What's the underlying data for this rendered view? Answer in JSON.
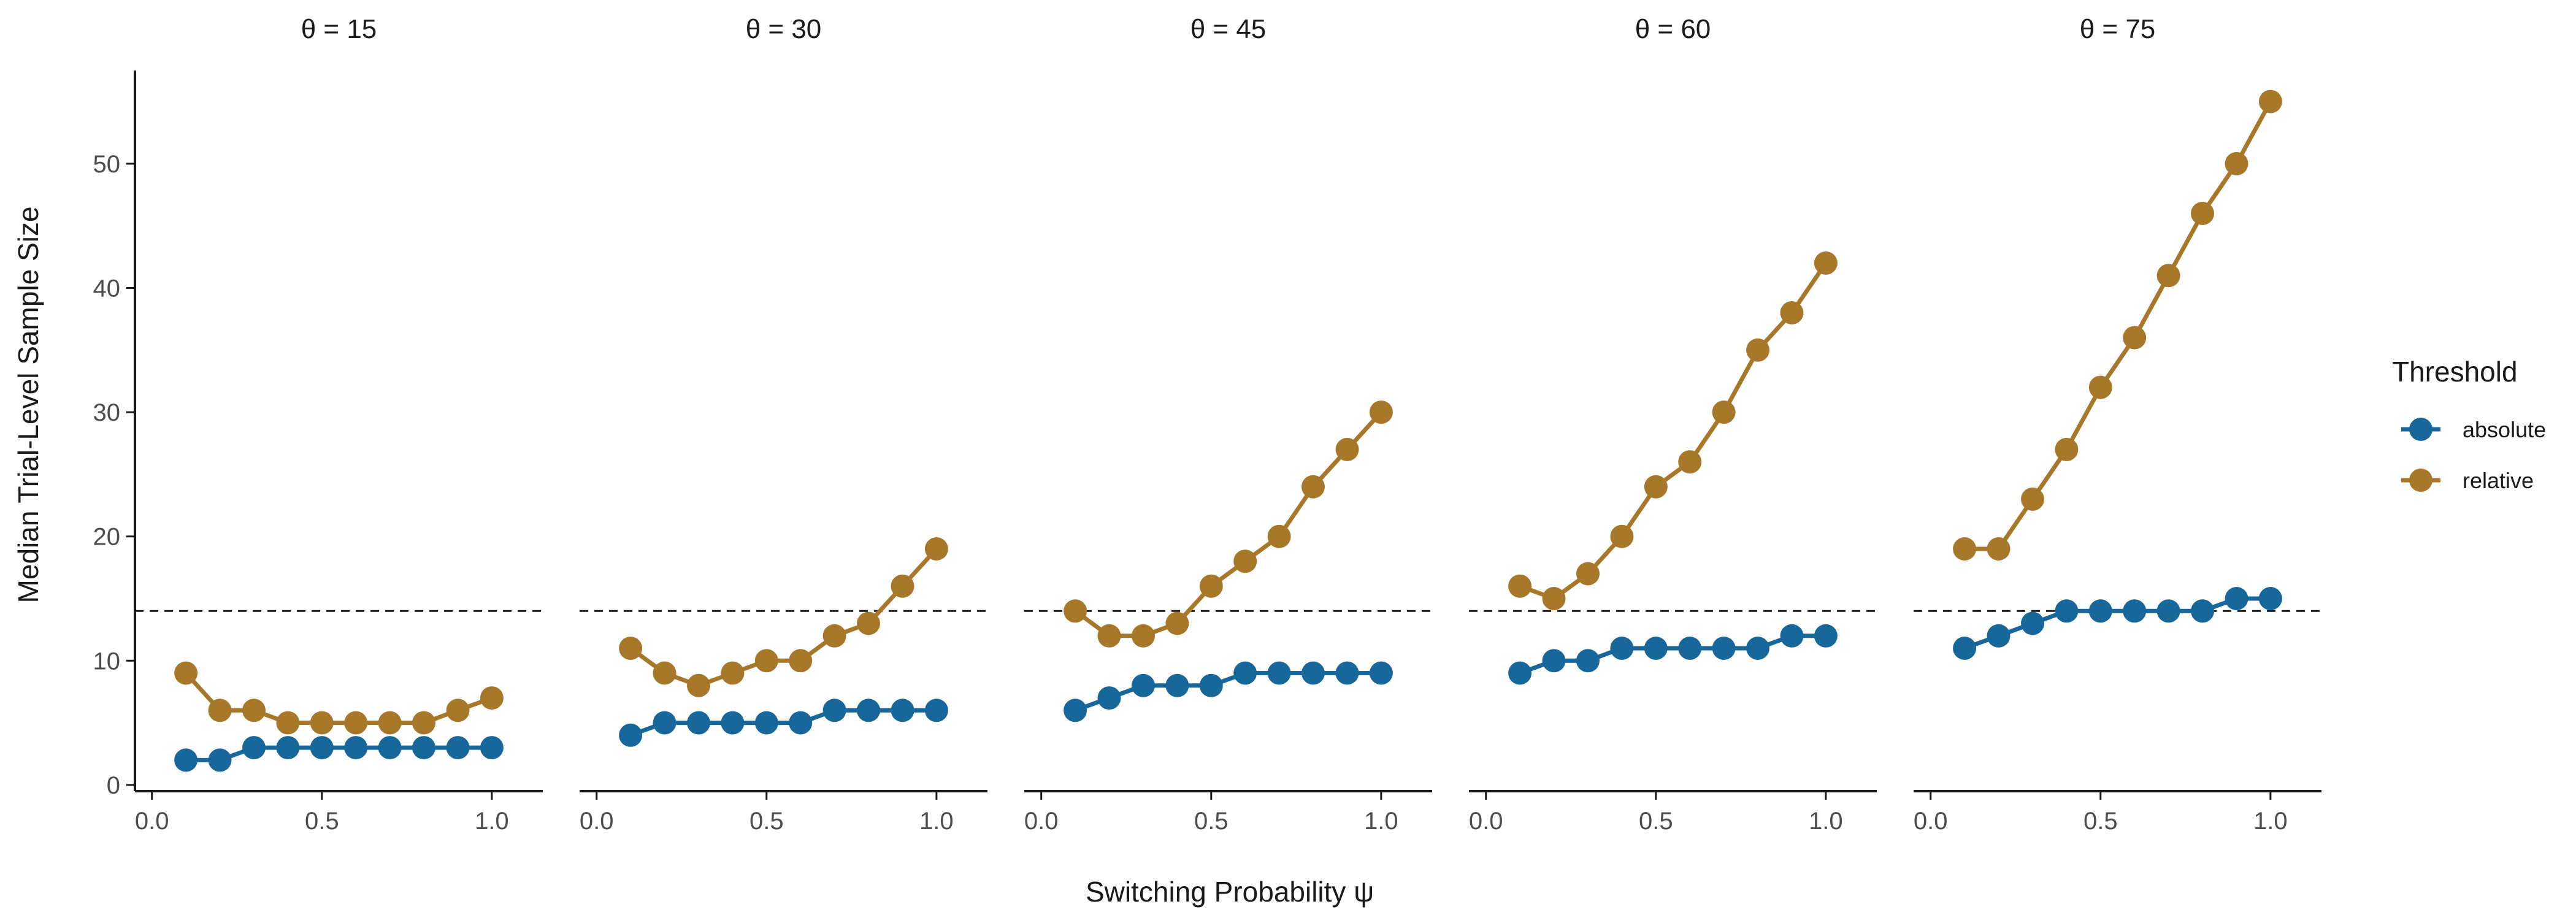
{
  "chart_data": {
    "type": "line",
    "facet_variable": "θ",
    "facets": [
      {
        "label": "θ = 15",
        "series": [
          {
            "name": "absolute",
            "values": [
              2,
              2,
              3,
              3,
              3,
              3,
              3,
              3,
              3,
              3
            ]
          },
          {
            "name": "relative",
            "values": [
              9,
              6,
              6,
              5,
              5,
              5,
              5,
              5,
              6,
              7
            ]
          }
        ]
      },
      {
        "label": "θ = 30",
        "series": [
          {
            "name": "absolute",
            "values": [
              4,
              5,
              5,
              5,
              5,
              5,
              6,
              6,
              6,
              6
            ]
          },
          {
            "name": "relative",
            "values": [
              11,
              9,
              8,
              9,
              10,
              10,
              12,
              13,
              16,
              19
            ]
          }
        ]
      },
      {
        "label": "θ = 45",
        "series": [
          {
            "name": "absolute",
            "values": [
              6,
              7,
              8,
              8,
              8,
              9,
              9,
              9,
              9,
              9
            ]
          },
          {
            "name": "relative",
            "values": [
              14,
              12,
              12,
              13,
              16,
              18,
              20,
              24,
              27,
              30
            ]
          }
        ]
      },
      {
        "label": "θ = 60",
        "series": [
          {
            "name": "absolute",
            "values": [
              9,
              10,
              10,
              11,
              11,
              11,
              11,
              11,
              12,
              12
            ]
          },
          {
            "name": "relative",
            "values": [
              16,
              15,
              17,
              20,
              24,
              26,
              30,
              35,
              38,
              42
            ]
          }
        ]
      },
      {
        "label": "θ = 75",
        "series": [
          {
            "name": "absolute",
            "values": [
              11,
              12,
              13,
              14,
              14,
              14,
              14,
              14,
              15,
              15
            ]
          },
          {
            "name": "relative",
            "values": [
              19,
              19,
              23,
              27,
              32,
              36,
              41,
              46,
              50,
              55
            ]
          }
        ]
      }
    ],
    "x": [
      0.1,
      0.2,
      0.3,
      0.4,
      0.5,
      0.6,
      0.7,
      0.8,
      0.9,
      1.0
    ],
    "xlabel": "Switching Probability ψ",
    "ylabel": "Median Trial-Level Sample Size",
    "xlim": [
      -0.05,
      1.15
    ],
    "ylim": [
      -0.5,
      57.5
    ],
    "x_ticks": [
      0.0,
      0.5,
      1.0
    ],
    "x_tick_labels": [
      "0.0",
      "0.5",
      "1.0"
    ],
    "y_ticks": [
      0,
      10,
      20,
      30,
      40,
      50
    ],
    "y_tick_labels": [
      "0",
      "10",
      "20",
      "30",
      "40",
      "50"
    ],
    "reference_line": {
      "y": 14,
      "style": "dashed"
    },
    "legend": {
      "title": "Threshold",
      "position": "right",
      "entries": [
        {
          "name": "absolute",
          "color": "#17679b"
        },
        {
          "name": "relative",
          "color": "#a8782a"
        }
      ]
    },
    "grid": false
  }
}
